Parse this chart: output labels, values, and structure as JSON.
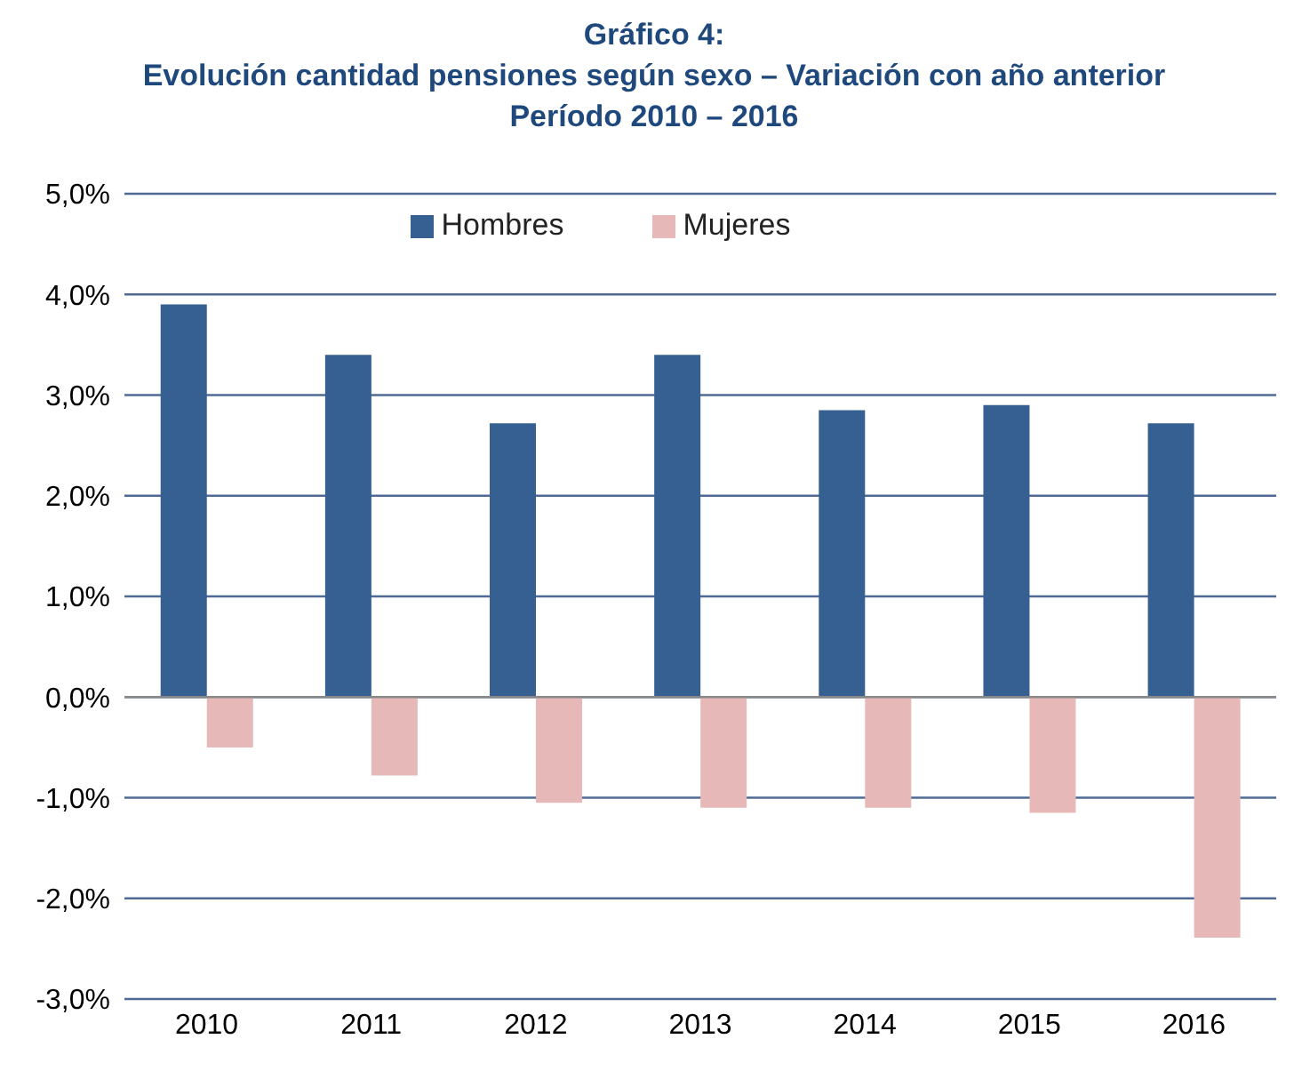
{
  "chart_data": {
    "type": "bar",
    "title": "Gráfico 4:\nEvolución cantidad pensiones según sexo – Variación con año anterior\nPeríodo 2010 – 2016",
    "categories": [
      "2010",
      "2011",
      "2012",
      "2013",
      "2014",
      "2015",
      "2016"
    ],
    "series": [
      {
        "name": "Hombres",
        "color": "#366092",
        "values": [
          3.9,
          3.4,
          2.72,
          3.4,
          2.85,
          2.9,
          2.72
        ]
      },
      {
        "name": "Mujeres",
        "color": "#e6b8b7",
        "values": [
          -0.5,
          -0.78,
          -1.05,
          -1.1,
          -1.1,
          -1.15,
          -2.39
        ]
      }
    ],
    "ylim": [
      -3,
      5
    ],
    "yticks": [
      {
        "value": -3,
        "label": "-3,0%"
      },
      {
        "value": -2,
        "label": "-2,0%"
      },
      {
        "value": -1,
        "label": "-1,0%"
      },
      {
        "value": 0,
        "label": "0,0%"
      },
      {
        "value": 1,
        "label": "1,0%"
      },
      {
        "value": 2,
        "label": "2,0%"
      },
      {
        "value": 3,
        "label": "3,0%"
      },
      {
        "value": 4,
        "label": "4,0%"
      },
      {
        "value": 5,
        "label": "5,0%"
      }
    ],
    "grid": "y",
    "legend": "top"
  }
}
